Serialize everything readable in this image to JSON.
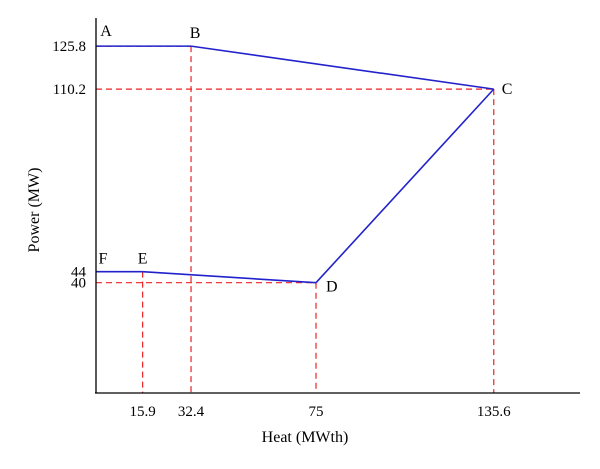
{
  "chart_data": {
    "type": "line",
    "title": "",
    "xlabel": "Heat (MWth)",
    "ylabel": "Power (MW)",
    "xlim": [
      0,
      165
    ],
    "ylim": [
      0,
      136
    ],
    "x_ticks": [
      15.9,
      32.4,
      75,
      135.6
    ],
    "y_ticks": [
      40,
      44,
      110.2,
      125.8
    ],
    "points": [
      {
        "label": "A",
        "x": 0,
        "y": 125.8
      },
      {
        "label": "B",
        "x": 32.4,
        "y": 125.8
      },
      {
        "label": "C",
        "x": 135.6,
        "y": 110.2
      },
      {
        "label": "D",
        "x": 75,
        "y": 40
      },
      {
        "label": "E",
        "x": 15.9,
        "y": 44
      },
      {
        "label": "F",
        "x": 0,
        "y": 44
      }
    ],
    "polyline_order": [
      "A",
      "B",
      "C",
      "D",
      "E",
      "F"
    ],
    "guide_lines": [
      "B",
      "C",
      "D",
      "E"
    ],
    "colors": {
      "boundary": "#2222cc",
      "guides": "#ee2222",
      "axes": "#000000"
    }
  }
}
